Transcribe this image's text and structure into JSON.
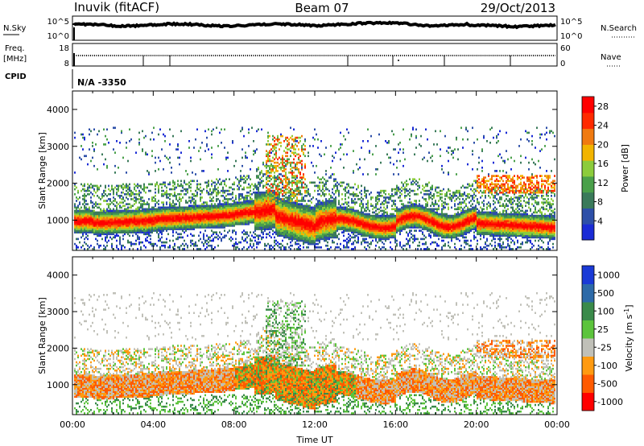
{
  "header": {
    "station": "Inuvik (fitACF)",
    "beam": "Beam 07",
    "date": "29/Oct/2013"
  },
  "noise_panel": {
    "left_label": "N.Sky",
    "right_label": "N.Search",
    "left_ticks": [
      "10^5",
      "10^0"
    ],
    "right_ticks": [
      "10^5",
      "10^0"
    ]
  },
  "freq_panel": {
    "left_label_line1": "Freq.",
    "left_label_line2": "[MHz]",
    "right_label": "Nave",
    "left_ticks": [
      "18",
      "8"
    ],
    "right_ticks": [
      "60",
      "0"
    ]
  },
  "cpid_panel": {
    "label": "CPID",
    "value": "N/A -3350"
  },
  "colors": {
    "power": [
      "#1a2bd6",
      "#2d4fa8",
      "#3a7a5a",
      "#4aa04a",
      "#8ccc3c",
      "#f2b400",
      "#f07a10",
      "#ff2a00",
      "#ff0000"
    ],
    "velocity": [
      "#ff0000",
      "#ff5a00",
      "#ff9a10",
      "#c0c0b8",
      "#5cc43c",
      "#3a8a4a",
      "#2d6aa8",
      "#1a3ad6"
    ]
  },
  "chart_data": [
    {
      "type": "heatmap",
      "title": "Power",
      "ylabel": "Slant Range [km]",
      "xlabel": "",
      "y_ticks": [
        "1000",
        "2000",
        "3000",
        "4000"
      ],
      "ylim": [
        180,
        4500
      ],
      "x_ticks": [
        "00:00",
        "04:00",
        "08:00",
        "12:00",
        "16:00",
        "20:00",
        "00:00"
      ],
      "colorbar_label": "Power [dB]",
      "colorbar_ticks": [
        "4",
        "8",
        "12",
        "16",
        "20",
        "24",
        "28"
      ],
      "colorbar_range": [
        0,
        30
      ]
    },
    {
      "type": "heatmap",
      "title": "Velocity",
      "ylabel": "Slant Range [km]",
      "xlabel": "Time UT",
      "y_ticks": [
        "1000",
        "2000",
        "3000",
        "4000"
      ],
      "ylim": [
        180,
        4500
      ],
      "x_ticks": [
        "00:00",
        "04:00",
        "08:00",
        "12:00",
        "16:00",
        "20:00",
        "00:00"
      ],
      "colorbar_label": "Velocity [m s^-1]",
      "colorbar_ticks": [
        "1000",
        "500",
        "100",
        "25",
        "-25",
        "-100",
        "-500",
        "-1000"
      ]
    }
  ]
}
